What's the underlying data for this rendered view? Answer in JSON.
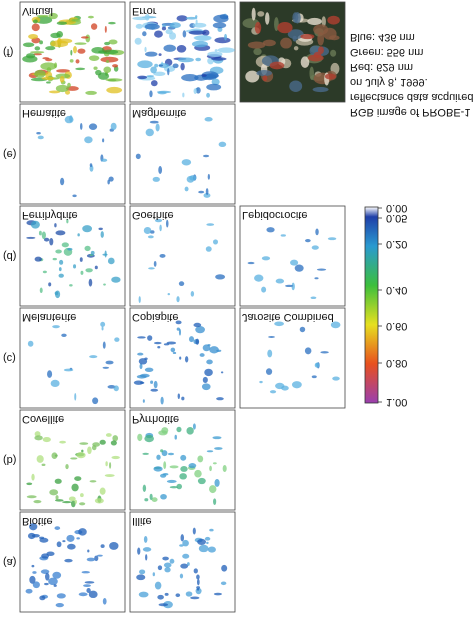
{
  "figure": {
    "rows": [
      {
        "label": "(f)",
        "panels": [
          "Virtual",
          "Error"
        ]
      },
      {
        "label": "(e)",
        "panels": [
          "Hematite",
          "Maghemite"
        ]
      },
      {
        "label": "(d)",
        "panels": [
          "Ferrihydrite",
          "Goethite",
          "Lepidocrocite"
        ]
      },
      {
        "label": "(c)",
        "panels": [
          "Melanterite",
          "Copiapite",
          "Jarosite Combined"
        ]
      },
      {
        "label": "(b)",
        "panels": [
          "Covellite",
          "Pyrrhotite"
        ]
      },
      {
        "label": "(a)",
        "panels": [
          "Biotite",
          "Illite"
        ]
      }
    ],
    "rgb_caption": [
      "RGB image of PROBE-1",
      "reflectance data acquired",
      "on July 8, 1999.",
      "Red:   629 nm",
      "Green: 556 nm",
      "Blue:  436 nm"
    ],
    "colorbar": {
      "labels": [
        "0.00",
        "0.05",
        "0.20",
        "0.40",
        "0.60",
        "0.80",
        "1.00"
      ]
    }
  }
}
